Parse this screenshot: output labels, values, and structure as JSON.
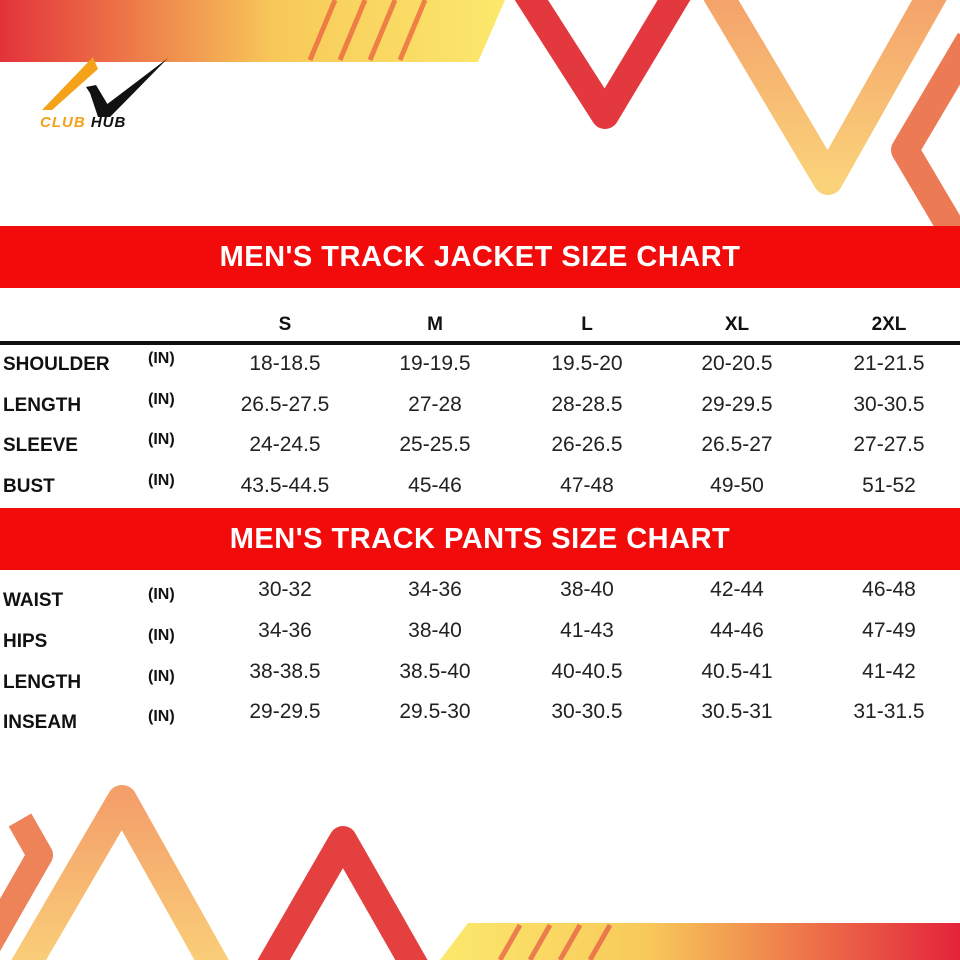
{
  "brand": {
    "name_part1": "CLUB",
    "name_part2": "HUB"
  },
  "colors": {
    "banner": "#f20b0b",
    "accent_orange": "#f4a21a",
    "accent_red": "#e3323a",
    "accent_yellow": "#f8d86a"
  },
  "jacket": {
    "title": "MEN'S TRACK JACKET SIZE CHART",
    "sizes": [
      "S",
      "M",
      "L",
      "XL",
      "2XL"
    ],
    "rows": [
      {
        "label": "SHOULDER",
        "unit": "(IN)",
        "values": [
          "18-18.5",
          "19-19.5",
          "19.5-20",
          "20-20.5",
          "21-21.5"
        ]
      },
      {
        "label": "LENGTH",
        "unit": "(IN)",
        "values": [
          "26.5-27.5",
          "27-28",
          "28-28.5",
          "29-29.5",
          "30-30.5"
        ]
      },
      {
        "label": "SLEEVE",
        "unit": "(IN)",
        "values": [
          "24-24.5",
          "25-25.5",
          "26-26.5",
          "26.5-27",
          "27-27.5"
        ]
      },
      {
        "label": "BUST",
        "unit": "(IN)",
        "values": [
          "43.5-44.5",
          "45-46",
          "47-48",
          "49-50",
          "51-52"
        ]
      }
    ]
  },
  "pants": {
    "title": "MEN'S TRACK PANTS SIZE CHART",
    "rows": [
      {
        "label": "WAIST",
        "unit": "(IN)",
        "values": [
          "30-32",
          "34-36",
          "38-40",
          "42-44",
          "46-48"
        ]
      },
      {
        "label": "HIPS",
        "unit": "(IN)",
        "values": [
          "34-36",
          "38-40",
          "41-43",
          "44-46",
          "47-49"
        ]
      },
      {
        "label": "LENGTH",
        "unit": "(IN)",
        "values": [
          "38-38.5",
          "38.5-40",
          "40-40.5",
          "40.5-41",
          "41-42"
        ]
      },
      {
        "label": "INSEAM",
        "unit": "(IN)",
        "values": [
          "29-29.5",
          "29.5-30",
          "30-30.5",
          "30.5-31",
          "31-31.5"
        ]
      }
    ]
  }
}
